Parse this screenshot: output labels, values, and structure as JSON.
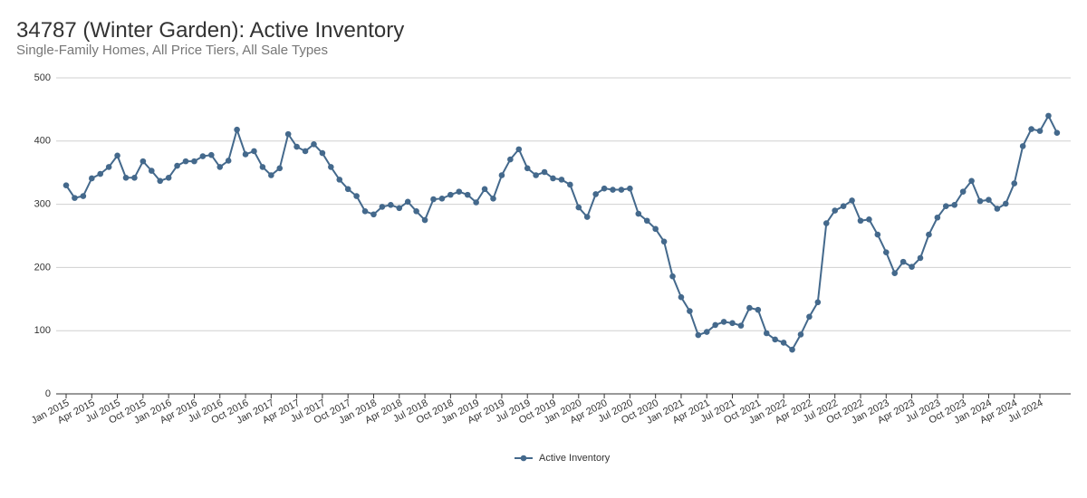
{
  "chart_data": {
    "type": "line",
    "title": "34787 (Winter Garden): Active Inventory",
    "subtitle": "Single-Family Homes, All Price Tiers, All Sale Types",
    "x": [
      "Jan 2015",
      null,
      null,
      "Apr 2015",
      null,
      null,
      "Jul 2015",
      null,
      null,
      "Oct 2015",
      null,
      null,
      "Jan 2016",
      null,
      null,
      "Apr 2016",
      null,
      null,
      "Jul 2016",
      null,
      null,
      "Oct 2016",
      null,
      null,
      "Jan 2017",
      null,
      null,
      "Apr 2017",
      null,
      null,
      "Jul 2017",
      null,
      null,
      "Oct 2017",
      null,
      null,
      "Jan 2018",
      null,
      null,
      "Apr 2018",
      null,
      null,
      "Jul 2018",
      null,
      null,
      "Oct 2018",
      null,
      null,
      "Jan 2019",
      null,
      null,
      "Apr 2019",
      null,
      null,
      "Jul 2019",
      null,
      null,
      "Oct 2019",
      null,
      null,
      "Jan 2020",
      null,
      null,
      "Apr 2020",
      null,
      null,
      "Jul 2020",
      null,
      null,
      "Oct 2020",
      null,
      null,
      "Jan 2021",
      null,
      null,
      "Apr 2021",
      null,
      null,
      "Jul 2021",
      null,
      null,
      "Oct 2021",
      null,
      null,
      "Jan 2022",
      null,
      null,
      "Apr 2022",
      null,
      null,
      "Jul 2022",
      null,
      null,
      "Oct 2022",
      null,
      null,
      "Jan 2023",
      null,
      null,
      "Apr 2023",
      null,
      null,
      "Jul 2023",
      null,
      null,
      "Oct 2023",
      null,
      null,
      "Jan 2024",
      null,
      null,
      "Apr 2024",
      null,
      null,
      "Jul 2024",
      null,
      null
    ],
    "series": [
      {
        "name": "Active Inventory",
        "color": "#44698c",
        "values": [
          330,
          310,
          313,
          341,
          348,
          359,
          377,
          342,
          342,
          368,
          353,
          337,
          342,
          361,
          368,
          368,
          376,
          378,
          359,
          369,
          418,
          379,
          384,
          359,
          346,
          357,
          411,
          391,
          384,
          395,
          381,
          359,
          339,
          324,
          313,
          289,
          284,
          296,
          299,
          294,
          304,
          289,
          275,
          308,
          309,
          315,
          320,
          315,
          303,
          324,
          309,
          346,
          371,
          387,
          357,
          346,
          351,
          341,
          339,
          331,
          295,
          280,
          316,
          325,
          323,
          323,
          325,
          285,
          274,
          261,
          241,
          186,
          153,
          131,
          93,
          98,
          109,
          114,
          112,
          108,
          136,
          133,
          96,
          86,
          81,
          70,
          94,
          122,
          145,
          270,
          290,
          297,
          306,
          274,
          276,
          252,
          224,
          191,
          209,
          201,
          215,
          252,
          279,
          297,
          299,
          320,
          337,
          305,
          307,
          293,
          301,
          333,
          392,
          419,
          416,
          440,
          413
        ]
      }
    ],
    "ylim": [
      0,
      500
    ],
    "yticks": [
      0,
      100,
      200,
      300,
      400,
      500
    ],
    "grid": true,
    "legend": "bottom"
  }
}
